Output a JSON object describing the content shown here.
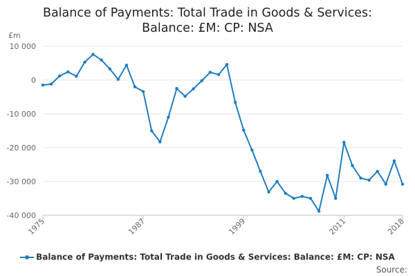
{
  "title_lines": [
    "Balance of Payments: Total Trade in Goods & Services:",
    "Balance: £M: CP: NSA"
  ],
  "source_label": "Source:",
  "colors": {
    "series": "#1f7cc0",
    "grid": "#e6e6e6",
    "axis": "#c0c0c0",
    "text": "#666666"
  },
  "chart_data": {
    "type": "line",
    "title": "Balance of Payments: Total Trade in Goods & Services: Balance: £M: CP: NSA",
    "xlabel": "",
    "ylabel": "£m",
    "x_tick_labels": [
      "1975",
      "1987",
      "1999",
      "2011",
      "2018"
    ],
    "y_tick_labels": [
      "10 000",
      "0",
      "-10 000",
      "-20 000",
      "-30 000",
      "-40 000"
    ],
    "ylim": [
      -40000,
      10000
    ],
    "xlim": [
      1975,
      2018
    ],
    "grid": true,
    "legend_position": "bottom",
    "series": [
      {
        "name": "Balance of Payments: Total Trade in Goods & Services: Balance: £M: CP: NSA",
        "x": [
          1975,
          1976,
          1977,
          1978,
          1979,
          1980,
          1981,
          1982,
          1983,
          1984,
          1985,
          1986,
          1987,
          1988,
          1989,
          1990,
          1991,
          1992,
          1993,
          1994,
          1995,
          1996,
          1997,
          1998,
          1999,
          2000,
          2001,
          2002,
          2003,
          2004,
          2005,
          2006,
          2007,
          2008,
          2009,
          2010,
          2011,
          2012,
          2013,
          2014,
          2015,
          2016,
          2017,
          2018
        ],
        "values": [
          -1500,
          -1200,
          1200,
          2400,
          1100,
          5300,
          7600,
          5900,
          3300,
          200,
          4400,
          -2000,
          -3400,
          -15000,
          -18300,
          -11000,
          -2500,
          -4800,
          -2600,
          -200,
          2300,
          1600,
          4600,
          -6600,
          -14800,
          -20700,
          -27000,
          -33100,
          -30000,
          -33500,
          -35000,
          -34400,
          -35000,
          -38800,
          -28200,
          -35000,
          -18400,
          -25300,
          -29000,
          -29600,
          -27000,
          -30800,
          -23900,
          -30800
        ]
      }
    ]
  }
}
